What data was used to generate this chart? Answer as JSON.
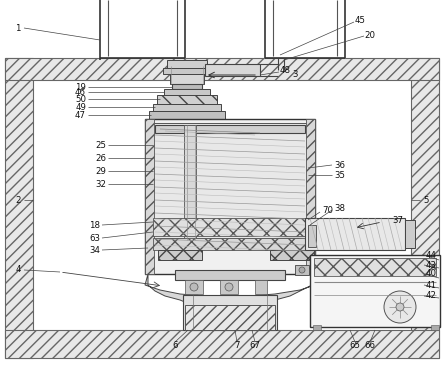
{
  "bg": "#ffffff",
  "lc": "#444444",
  "hc": "#888888",
  "fig_width": 4.44,
  "fig_height": 3.89,
  "dpi": 100,
  "label_fs": 6.0,
  "wall_fc": "#d8d8d8",
  "wall_ec": "#555555",
  "part_fc": "#f0f0f0",
  "dark_fc": "#cccccc",
  "mesh_fc": "#e0e0e0"
}
